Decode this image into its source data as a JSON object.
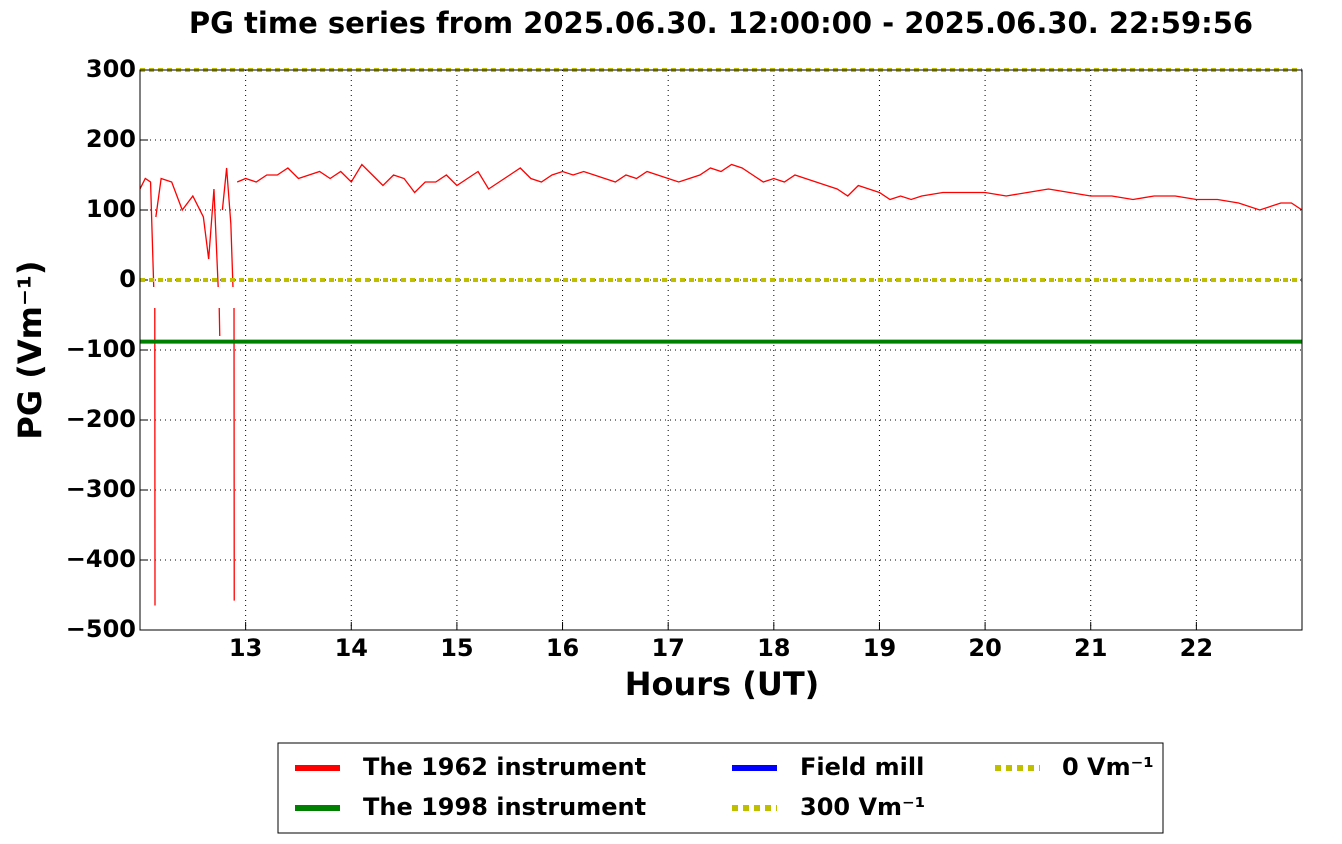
{
  "chart_data": {
    "type": "line",
    "title": "PG time series from 2025.06.30. 12:00:00 - 2025.06.30. 22:59:56",
    "xlabel": "Hours (UT)",
    "ylabel": "PG (Vm⁻¹)",
    "xlim": [
      12,
      23
    ],
    "ylim": [
      -500,
      300
    ],
    "xticks": [
      13,
      14,
      15,
      16,
      17,
      18,
      19,
      20,
      21,
      22
    ],
    "yticks": [
      {
        "value": -500,
        "label": "−500"
      },
      {
        "value": -400,
        "label": "−400"
      },
      {
        "value": -300,
        "label": "−300"
      },
      {
        "value": -200,
        "label": "−200"
      },
      {
        "value": -100,
        "label": "−100"
      },
      0,
      100,
      200,
      300
    ],
    "grid": true,
    "legend": "lower center",
    "series": [
      {
        "name": "The 1962 instrument",
        "color": "#ff0000",
        "linestyle": "solid",
        "x": [
          12.0,
          12.05,
          12.1,
          12.13,
          12.135,
          12.14,
          12.142,
          12.145,
          12.15,
          12.2,
          12.3,
          12.4,
          12.5,
          12.6,
          12.65,
          12.7,
          12.74,
          12.745,
          12.75,
          12.755,
          12.76,
          12.78,
          12.82,
          12.86,
          12.88,
          12.885,
          12.89,
          12.892,
          12.895,
          12.92,
          13.0,
          13.1,
          13.2,
          13.3,
          13.4,
          13.5,
          13.6,
          13.7,
          13.8,
          13.9,
          14.0,
          14.1,
          14.2,
          14.3,
          14.4,
          14.5,
          14.6,
          14.7,
          14.8,
          14.9,
          15.0,
          15.1,
          15.2,
          15.3,
          15.4,
          15.5,
          15.6,
          15.7,
          15.8,
          15.9,
          16.0,
          16.1,
          16.2,
          16.3,
          16.4,
          16.5,
          16.6,
          16.7,
          16.8,
          16.9,
          17.0,
          17.1,
          17.2,
          17.3,
          17.4,
          17.5,
          17.6,
          17.7,
          17.8,
          17.9,
          18.0,
          18.1,
          18.2,
          18.3,
          18.4,
          18.5,
          18.6,
          18.7,
          18.8,
          18.9,
          19.0,
          19.1,
          19.2,
          19.3,
          19.4,
          19.6,
          19.8,
          20.0,
          20.2,
          20.4,
          20.6,
          20.8,
          21.0,
          21.2,
          21.4,
          21.6,
          21.8,
          22.0,
          22.2,
          22.4,
          22.6,
          22.8,
          22.9,
          23.0
        ],
        "values": [
          130,
          145,
          140,
          -10,
          null,
          -40,
          -465,
          null,
          90,
          145,
          140,
          100,
          120,
          90,
          30,
          130,
          -10,
          null,
          -40,
          -80,
          null,
          100,
          160,
          80,
          -10,
          null,
          -40,
          -458,
          null,
          140,
          145,
          140,
          150,
          150,
          160,
          145,
          150,
          155,
          145,
          155,
          140,
          165,
          150,
          135,
          150,
          145,
          125,
          140,
          140,
          150,
          135,
          145,
          155,
          130,
          140,
          150,
          160,
          145,
          140,
          150,
          155,
          150,
          155,
          150,
          145,
          140,
          150,
          145,
          155,
          150,
          145,
          140,
          145,
          150,
          160,
          155,
          165,
          160,
          150,
          140,
          145,
          140,
          150,
          145,
          140,
          135,
          130,
          120,
          135,
          130,
          125,
          115,
          120,
          115,
          120,
          125,
          125,
          125,
          120,
          125,
          130,
          125,
          120,
          120,
          115,
          120,
          120,
          115,
          115,
          110,
          100,
          110,
          110,
          100
        ]
      },
      {
        "name": "The 1998 instrument",
        "color": "#008000",
        "linestyle": "solid",
        "x": [
          12,
          23
        ],
        "values": [
          -88,
          -88
        ]
      },
      {
        "name": "Field mill",
        "color": "#0000ff",
        "linestyle": "solid",
        "x": [],
        "values": []
      },
      {
        "name": "300 Vm⁻¹",
        "color": "#bfbf00",
        "linestyle": "dotted",
        "x": [
          12,
          23
        ],
        "values": [
          300,
          300
        ]
      },
      {
        "name": "0 Vm⁻¹",
        "color": "#bfbf00",
        "linestyle": "dotted",
        "x": [
          12,
          23
        ],
        "values": [
          0,
          0
        ]
      }
    ]
  }
}
